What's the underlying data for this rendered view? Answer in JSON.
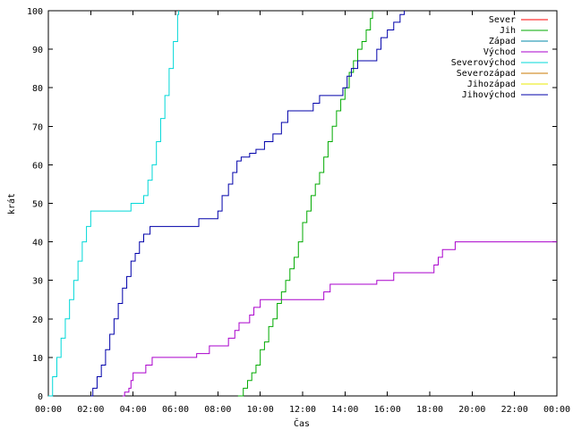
{
  "chart_data": {
    "type": "line",
    "title": "",
    "xlabel": "Čas",
    "ylabel": "krát",
    "xlim": [
      0,
      24
    ],
    "ylim": [
      0,
      100
    ],
    "grid": false,
    "legend_placement": "top-right",
    "x_ticks": [
      "00:00",
      "02:00",
      "04:00",
      "06:00",
      "08:00",
      "10:00",
      "12:00",
      "14:00",
      "16:00",
      "18:00",
      "20:00",
      "22:00",
      "00:00"
    ],
    "y_ticks": [
      "0",
      "10",
      "20",
      "30",
      "40",
      "50",
      "60",
      "70",
      "80",
      "90",
      "100"
    ],
    "series": [
      {
        "name": "Sever",
        "color": "#ff0000",
        "points": []
      },
      {
        "name": "Jih",
        "color": "#00aa00",
        "points": [
          [
            8.95,
            0
          ],
          [
            9.2,
            2
          ],
          [
            9.4,
            4
          ],
          [
            9.6,
            6
          ],
          [
            9.8,
            8
          ],
          [
            10.0,
            12
          ],
          [
            10.2,
            14
          ],
          [
            10.4,
            18
          ],
          [
            10.6,
            20
          ],
          [
            10.8,
            24
          ],
          [
            11.0,
            27
          ],
          [
            11.2,
            30
          ],
          [
            11.4,
            33
          ],
          [
            11.6,
            36
          ],
          [
            11.8,
            40
          ],
          [
            12.0,
            45
          ],
          [
            12.2,
            48
          ],
          [
            12.4,
            52
          ],
          [
            12.6,
            55
          ],
          [
            12.8,
            58
          ],
          [
            13.0,
            62
          ],
          [
            13.2,
            66
          ],
          [
            13.4,
            70
          ],
          [
            13.6,
            74
          ],
          [
            13.8,
            77
          ],
          [
            14.0,
            80
          ],
          [
            14.2,
            84
          ],
          [
            14.4,
            87
          ],
          [
            14.6,
            90
          ],
          [
            14.8,
            92
          ],
          [
            15.0,
            95
          ],
          [
            15.2,
            98
          ],
          [
            15.3,
            100
          ]
        ]
      },
      {
        "name": "Západ",
        "color": "#0088a8",
        "points": []
      },
      {
        "name": "Východ",
        "color": "#aa00cc",
        "points": [
          [
            3.5,
            0
          ],
          [
            3.6,
            1
          ],
          [
            3.8,
            2
          ],
          [
            3.9,
            4
          ],
          [
            4.0,
            6
          ],
          [
            4.5,
            6
          ],
          [
            4.6,
            8
          ],
          [
            4.8,
            8
          ],
          [
            4.9,
            10
          ],
          [
            6.0,
            10
          ],
          [
            6.9,
            10
          ],
          [
            7.0,
            11
          ],
          [
            7.5,
            11
          ],
          [
            7.6,
            13
          ],
          [
            8.4,
            13
          ],
          [
            8.5,
            15
          ],
          [
            8.8,
            17
          ],
          [
            9.0,
            19
          ],
          [
            9.4,
            19
          ],
          [
            9.5,
            21
          ],
          [
            9.7,
            23
          ],
          [
            10.0,
            25
          ],
          [
            11.5,
            25
          ],
          [
            12.0,
            25
          ],
          [
            12.9,
            25
          ],
          [
            13.0,
            27
          ],
          [
            13.3,
            29
          ],
          [
            14.5,
            29
          ],
          [
            15.0,
            29
          ],
          [
            15.5,
            30
          ],
          [
            16.2,
            30
          ],
          [
            16.3,
            32
          ],
          [
            17.8,
            32
          ],
          [
            18.2,
            34
          ],
          [
            18.4,
            36
          ],
          [
            18.6,
            38
          ],
          [
            19.1,
            38
          ],
          [
            19.2,
            40
          ],
          [
            24,
            40
          ]
        ]
      },
      {
        "name": "Severovýchod",
        "color": "#00d8d8",
        "points": [
          [
            0,
            0
          ],
          [
            0.2,
            5
          ],
          [
            0.4,
            10
          ],
          [
            0.6,
            15
          ],
          [
            0.8,
            20
          ],
          [
            1.0,
            25
          ],
          [
            1.2,
            30
          ],
          [
            1.4,
            35
          ],
          [
            1.6,
            40
          ],
          [
            1.8,
            44
          ],
          [
            2.0,
            48
          ],
          [
            2.3,
            48
          ],
          [
            3.8,
            48
          ],
          [
            3.9,
            50
          ],
          [
            4.4,
            50
          ],
          [
            4.5,
            52
          ],
          [
            4.7,
            56
          ],
          [
            4.9,
            60
          ],
          [
            5.1,
            66
          ],
          [
            5.3,
            72
          ],
          [
            5.5,
            78
          ],
          [
            5.7,
            85
          ],
          [
            5.9,
            92
          ],
          [
            6.1,
            99
          ],
          [
            6.15,
            100
          ]
        ]
      },
      {
        "name": "Severozápad",
        "color": "#c87800",
        "points": []
      },
      {
        "name": "Jihozápad",
        "color": "#e8e800",
        "points": []
      },
      {
        "name": "Jihovýchod",
        "color": "#0000aa",
        "points": [
          [
            2.0,
            0
          ],
          [
            2.1,
            2
          ],
          [
            2.3,
            5
          ],
          [
            2.5,
            8
          ],
          [
            2.7,
            12
          ],
          [
            2.9,
            16
          ],
          [
            3.1,
            20
          ],
          [
            3.3,
            24
          ],
          [
            3.5,
            28
          ],
          [
            3.7,
            31
          ],
          [
            3.9,
            35
          ],
          [
            4.1,
            37
          ],
          [
            4.3,
            40
          ],
          [
            4.5,
            42
          ],
          [
            4.8,
            44
          ],
          [
            7.0,
            44
          ],
          [
            7.1,
            46
          ],
          [
            7.9,
            46
          ],
          [
            8.0,
            48
          ],
          [
            8.2,
            52
          ],
          [
            8.5,
            55
          ],
          [
            8.7,
            58
          ],
          [
            8.9,
            61
          ],
          [
            9.1,
            62
          ],
          [
            9.5,
            63
          ],
          [
            9.8,
            64
          ],
          [
            10.2,
            66
          ],
          [
            10.6,
            68
          ],
          [
            11.0,
            71
          ],
          [
            11.3,
            74
          ],
          [
            12.2,
            74
          ],
          [
            12.5,
            76
          ],
          [
            12.8,
            78
          ],
          [
            13.7,
            78
          ],
          [
            13.9,
            80
          ],
          [
            14.1,
            83
          ],
          [
            14.3,
            85
          ],
          [
            14.6,
            87
          ],
          [
            15.3,
            87
          ],
          [
            15.5,
            90
          ],
          [
            15.7,
            93
          ],
          [
            16.0,
            95
          ],
          [
            16.3,
            97
          ],
          [
            16.6,
            99
          ],
          [
            16.8,
            100
          ]
        ]
      }
    ]
  }
}
